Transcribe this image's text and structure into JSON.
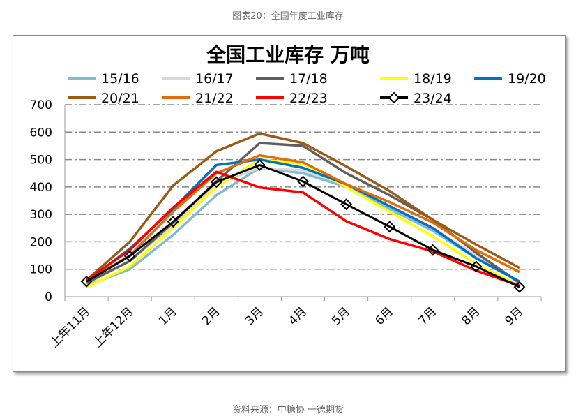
{
  "caption_top": "图表20：全国年度工业库存",
  "caption_bottom": "资料来源：中糖协 一德期货",
  "chart_data": {
    "type": "line",
    "title": "全国工业库存 万吨",
    "xlabel": "",
    "ylabel": "",
    "ylim": [
      0,
      700
    ],
    "yticks": [
      0,
      100,
      200,
      300,
      400,
      500,
      600,
      700
    ],
    "grid": true,
    "legend_placement": "top",
    "categories": [
      "上年11月",
      "上年12月",
      "1月",
      "2月",
      "3月",
      "4月",
      "5月",
      "6月",
      "7月",
      "8月",
      "9月"
    ],
    "series": [
      {
        "name": "15/16",
        "color": "#7FBCD2",
        "values": [
          40,
          100,
          225,
          370,
          470,
          450,
          400,
          320,
          240,
          140,
          55
        ]
      },
      {
        "name": "16/17",
        "color": "#D9D9D9",
        "values": [
          45,
          130,
          260,
          410,
          470,
          460,
          410,
          330,
          250,
          150,
          50
        ]
      },
      {
        "name": "17/18",
        "color": "#5F5F5F",
        "values": [
          50,
          130,
          270,
          420,
          560,
          550,
          450,
          370,
          280,
          160,
          50
        ]
      },
      {
        "name": "18/19",
        "color": "#FFFF00",
        "values": [
          35,
          110,
          250,
          400,
          500,
          485,
          400,
          310,
          220,
          120,
          40
        ]
      },
      {
        "name": "19/20",
        "color": "#0070C0",
        "values": [
          55,
          175,
          320,
          480,
          500,
          470,
          410,
          330,
          250,
          140,
          55
        ]
      },
      {
        "name": "20/21",
        "color": "#9C5A14",
        "values": [
          60,
          200,
          405,
          530,
          595,
          560,
          475,
          385,
          280,
          190,
          105
        ]
      },
      {
        "name": "21/22",
        "color": "#E36C09",
        "values": [
          55,
          150,
          310,
          450,
          515,
          490,
          410,
          345,
          270,
          170,
          90
        ]
      },
      {
        "name": "22/23",
        "color": "#FF0000",
        "values": [
          60,
          170,
          325,
          455,
          398,
          380,
          275,
          210,
          165,
          95,
          40
        ]
      },
      {
        "name": "23/24",
        "color": "#000000",
        "marker": "diamond",
        "values": [
          55,
          148,
          273,
          418,
          480,
          420,
          337,
          255,
          170,
          110,
          35
        ]
      }
    ]
  }
}
